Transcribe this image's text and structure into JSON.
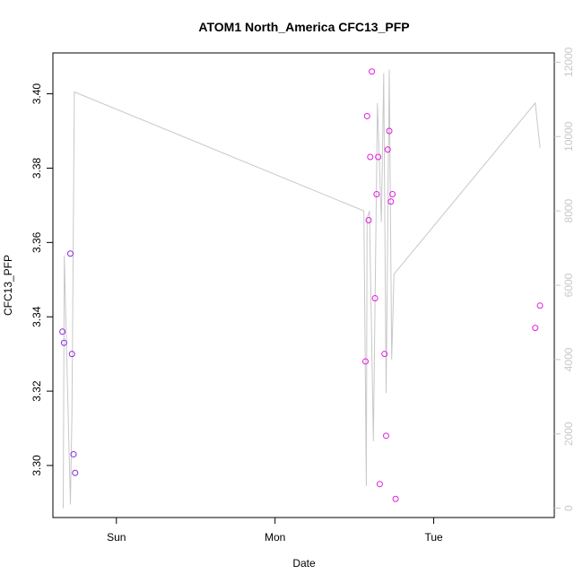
{
  "chart_data": {
    "type": "scatter",
    "title": "ATOM1 North_America CFC13_PFP",
    "xlabel": "Date",
    "ylabel": "CFC13_PFP",
    "x_ticks": [
      {
        "label": "Sun",
        "value": 1.0
      },
      {
        "label": "Mon",
        "value": 2.0
      },
      {
        "label": "Tue",
        "value": 3.0
      }
    ],
    "xlim": [
      0.6,
      3.76
    ],
    "ylim": [
      3.286,
      3.411
    ],
    "y_ticks": [
      3.3,
      3.32,
      3.34,
      3.36,
      3.38,
      3.4
    ],
    "y2lim": [
      -250,
      12250
    ],
    "y2_ticks": [
      0,
      2000,
      4000,
      6000,
      8000,
      10000,
      12000
    ],
    "grid": false,
    "colors": {
      "early_points": "#8a2be2",
      "late_points": "#e01ee0",
      "line": "#c8c8c8",
      "right_axis": "#c8c8c8"
    },
    "points_early": [
      {
        "x": 0.66,
        "y": 3.336
      },
      {
        "x": 0.67,
        "y": 3.333
      },
      {
        "x": 0.71,
        "y": 3.357
      },
      {
        "x": 0.72,
        "y": 3.33
      },
      {
        "x": 0.73,
        "y": 3.303
      },
      {
        "x": 0.74,
        "y": 3.298
      }
    ],
    "points_late": [
      {
        "x": 2.57,
        "y": 3.328
      },
      {
        "x": 2.58,
        "y": 3.394
      },
      {
        "x": 2.59,
        "y": 3.366
      },
      {
        "x": 2.6,
        "y": 3.383
      },
      {
        "x": 2.61,
        "y": 3.406
      },
      {
        "x": 2.63,
        "y": 3.345
      },
      {
        "x": 2.64,
        "y": 3.373
      },
      {
        "x": 2.65,
        "y": 3.383
      },
      {
        "x": 2.66,
        "y": 3.295
      },
      {
        "x": 2.69,
        "y": 3.33
      },
      {
        "x": 2.7,
        "y": 3.308
      },
      {
        "x": 2.71,
        "y": 3.385
      },
      {
        "x": 2.72,
        "y": 3.39
      },
      {
        "x": 2.73,
        "y": 3.371
      },
      {
        "x": 2.74,
        "y": 3.373
      },
      {
        "x": 2.76,
        "y": 3.291
      },
      {
        "x": 3.64,
        "y": 3.337
      },
      {
        "x": 3.67,
        "y": 3.343
      }
    ],
    "line_series": [
      {
        "x": 0.665,
        "y2": 0
      },
      {
        "x": 0.672,
        "y2": 6800
      },
      {
        "x": 0.71,
        "y2": 100
      },
      {
        "x": 0.72,
        "y2": 2500
      },
      {
        "x": 0.735,
        "y2": 11200
      },
      {
        "x": 2.56,
        "y2": 8000
      },
      {
        "x": 2.575,
        "y2": 600
      },
      {
        "x": 2.58,
        "y2": 7800
      },
      {
        "x": 2.595,
        "y2": 8000
      },
      {
        "x": 2.62,
        "y2": 1800
      },
      {
        "x": 2.645,
        "y2": 10900
      },
      {
        "x": 2.67,
        "y2": 7700
      },
      {
        "x": 2.685,
        "y2": 11700
      },
      {
        "x": 2.7,
        "y2": 3100
      },
      {
        "x": 2.72,
        "y2": 11800
      },
      {
        "x": 2.735,
        "y2": 4000
      },
      {
        "x": 2.75,
        "y2": 6300
      },
      {
        "x": 3.64,
        "y2": 10900
      },
      {
        "x": 3.67,
        "y2": 9700
      }
    ]
  }
}
